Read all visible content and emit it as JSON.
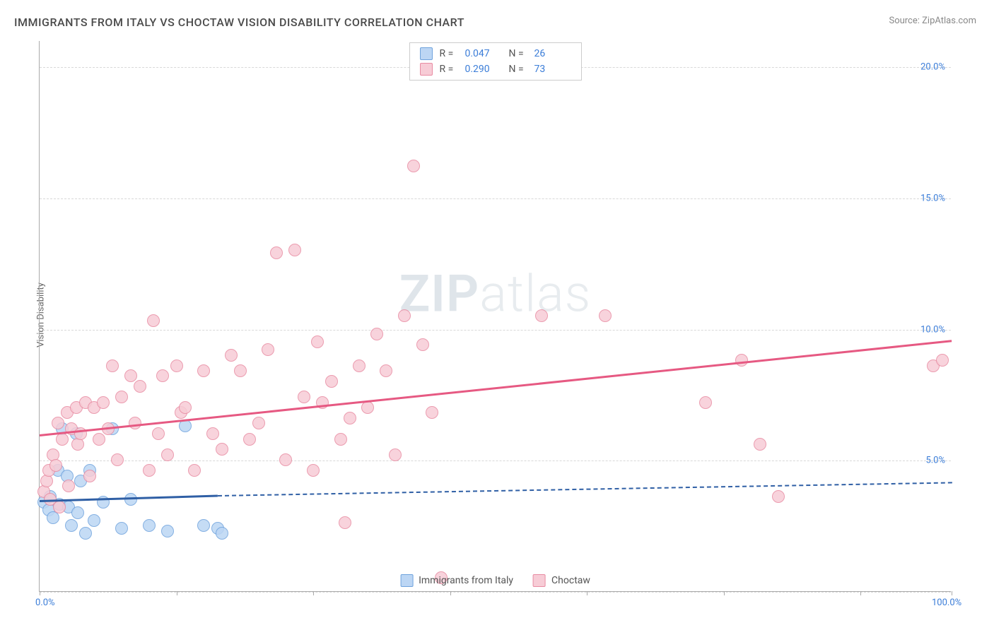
{
  "title": "IMMIGRANTS FROM ITALY VS CHOCTAW VISION DISABILITY CORRELATION CHART",
  "source": "Source: ZipAtlas.com",
  "y_axis_label": "Vision Disability",
  "watermark": {
    "bold": "ZIP",
    "light": "atlas"
  },
  "chart": {
    "type": "scatter",
    "background_color": "#ffffff",
    "grid_color": "#d8d8d8",
    "axis_color": "#aaaaaa",
    "xlim": [
      0,
      100
    ],
    "ylim": [
      0,
      21
    ],
    "x_ticks": [
      0,
      15,
      30,
      45,
      60,
      75,
      90,
      100
    ],
    "x_tick_labels": {
      "0": "0.0%",
      "100": "100.0%"
    },
    "y_gridlines": [
      0,
      5,
      10,
      15,
      20
    ],
    "y_tick_labels": {
      "5": "5.0%",
      "10": "10.0%",
      "15": "15.0%",
      "20": "20.0%"
    },
    "tick_label_color": "#3b7dd8",
    "marker_radius": 9,
    "marker_stroke_width": 1.5,
    "series": [
      {
        "id": "italy",
        "label": "Immigrants from Italy",
        "fill": "#bcd6f4",
        "stroke": "#6fa3dd",
        "points": [
          [
            0.5,
            3.4
          ],
          [
            1.0,
            3.1
          ],
          [
            1.2,
            3.6
          ],
          [
            1.5,
            2.8
          ],
          [
            2.0,
            4.6
          ],
          [
            2.2,
            3.3
          ],
          [
            2.5,
            6.2
          ],
          [
            3.0,
            4.4
          ],
          [
            3.2,
            3.2
          ],
          [
            3.5,
            2.5
          ],
          [
            4.0,
            6.0
          ],
          [
            4.2,
            3.0
          ],
          [
            4.5,
            4.2
          ],
          [
            5.0,
            2.2
          ],
          [
            5.5,
            4.6
          ],
          [
            6.0,
            2.7
          ],
          [
            7.0,
            3.4
          ],
          [
            8.0,
            6.2
          ],
          [
            9.0,
            2.4
          ],
          [
            10.0,
            3.5
          ],
          [
            12.0,
            2.5
          ],
          [
            14.0,
            2.3
          ],
          [
            16.0,
            6.3
          ],
          [
            18.0,
            2.5
          ],
          [
            19.5,
            2.4
          ],
          [
            20.0,
            2.2
          ]
        ],
        "trend": {
          "x1": 0,
          "y1": 3.5,
          "x2": 19.5,
          "y2": 3.7,
          "x2_dash": 100,
          "y2_dash": 4.2,
          "color": "#2f5fa5"
        }
      },
      {
        "id": "choctaw",
        "label": "Choctaw",
        "fill": "#f7ccd6",
        "stroke": "#e88ba2",
        "points": [
          [
            0.5,
            3.8
          ],
          [
            0.8,
            4.2
          ],
          [
            1.0,
            4.6
          ],
          [
            1.2,
            3.5
          ],
          [
            1.5,
            5.2
          ],
          [
            1.8,
            4.8
          ],
          [
            2.0,
            6.4
          ],
          [
            2.2,
            3.2
          ],
          [
            2.5,
            5.8
          ],
          [
            3.0,
            6.8
          ],
          [
            3.2,
            4.0
          ],
          [
            3.5,
            6.2
          ],
          [
            4.0,
            7.0
          ],
          [
            4.2,
            5.6
          ],
          [
            4.5,
            6.0
          ],
          [
            5.0,
            7.2
          ],
          [
            5.5,
            4.4
          ],
          [
            6.0,
            7.0
          ],
          [
            6.5,
            5.8
          ],
          [
            7.0,
            7.2
          ],
          [
            7.5,
            6.2
          ],
          [
            8.0,
            8.6
          ],
          [
            8.5,
            5.0
          ],
          [
            9.0,
            7.4
          ],
          [
            10.0,
            8.2
          ],
          [
            10.5,
            6.4
          ],
          [
            11.0,
            7.8
          ],
          [
            12.0,
            4.6
          ],
          [
            12.5,
            10.3
          ],
          [
            13.0,
            6.0
          ],
          [
            13.5,
            8.2
          ],
          [
            14.0,
            5.2
          ],
          [
            15.0,
            8.6
          ],
          [
            15.5,
            6.8
          ],
          [
            16.0,
            7.0
          ],
          [
            17.0,
            4.6
          ],
          [
            18.0,
            8.4
          ],
          [
            19.0,
            6.0
          ],
          [
            20.0,
            5.4
          ],
          [
            21.0,
            9.0
          ],
          [
            22.0,
            8.4
          ],
          [
            23.0,
            5.8
          ],
          [
            24.0,
            6.4
          ],
          [
            25.0,
            9.2
          ],
          [
            26.0,
            12.9
          ],
          [
            27.0,
            5.0
          ],
          [
            28.0,
            13.0
          ],
          [
            29.0,
            7.4
          ],
          [
            30.0,
            4.6
          ],
          [
            30.5,
            9.5
          ],
          [
            31.0,
            7.2
          ],
          [
            32.0,
            8.0
          ],
          [
            33.0,
            5.8
          ],
          [
            33.5,
            2.6
          ],
          [
            34.0,
            6.6
          ],
          [
            35.0,
            8.6
          ],
          [
            36.0,
            7.0
          ],
          [
            37.0,
            9.8
          ],
          [
            38.0,
            8.4
          ],
          [
            39.0,
            5.2
          ],
          [
            40.0,
            10.5
          ],
          [
            41.0,
            16.2
          ],
          [
            42.0,
            9.4
          ],
          [
            43.0,
            6.8
          ],
          [
            44.0,
            0.5
          ],
          [
            55.0,
            10.5
          ],
          [
            62.0,
            10.5
          ],
          [
            77.0,
            8.8
          ],
          [
            79.0,
            5.6
          ],
          [
            81.0,
            3.6
          ],
          [
            98.0,
            8.6
          ],
          [
            99.0,
            8.8
          ],
          [
            73.0,
            7.2
          ]
        ],
        "trend": {
          "x1": 0,
          "y1": 6.0,
          "x2": 100,
          "y2": 9.6,
          "color": "#e65982"
        }
      }
    ],
    "stats_box": {
      "border_color": "#cccccc",
      "rows": [
        {
          "swatch_fill": "#bcd6f4",
          "swatch_stroke": "#6fa3dd",
          "r_label": "R =",
          "r": "0.047",
          "n_label": "N =",
          "n": "26"
        },
        {
          "swatch_fill": "#f7ccd6",
          "swatch_stroke": "#e88ba2",
          "r_label": "R =",
          "r": "0.290",
          "n_label": "N =",
          "n": "73"
        }
      ]
    },
    "bottom_legend": [
      {
        "swatch_fill": "#bcd6f4",
        "swatch_stroke": "#6fa3dd",
        "label": "Immigrants from Italy"
      },
      {
        "swatch_fill": "#f7ccd6",
        "swatch_stroke": "#e88ba2",
        "label": "Choctaw"
      }
    ]
  }
}
